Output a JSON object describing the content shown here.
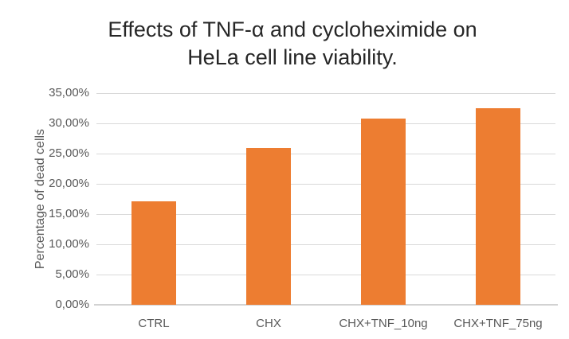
{
  "chart_data": {
    "type": "bar",
    "title": "Effects of TNF-α and cycloheximide on HeLa cell line viability.",
    "title_lines": [
      "Effects of TNF-α and cycloheximide on",
      "HeLa cell line viability."
    ],
    "ylabel": "Percentage of dead cells",
    "xlabel": "",
    "categories": [
      "CTRL",
      "CHX",
      "CHX+TNF_10ng",
      "CHX+TNF_75ng"
    ],
    "values": [
      17.1,
      25.9,
      30.8,
      32.5
    ],
    "value_unit": "%",
    "ylim": [
      0,
      35
    ],
    "y_step": 5,
    "y_tick_labels": [
      "0,00%",
      "5,00%",
      "10,00%",
      "15,00%",
      "20,00%",
      "25,00%",
      "30,00%",
      "35,00%"
    ],
    "grid": true,
    "legend": "none",
    "colors": {
      "bar": "#ED7D31",
      "gridline": "#D9D9D9",
      "axis_line": "#D2D2D2",
      "axis_text": "#595959",
      "title_text": "#262626",
      "background": "#FFFFFF"
    }
  }
}
